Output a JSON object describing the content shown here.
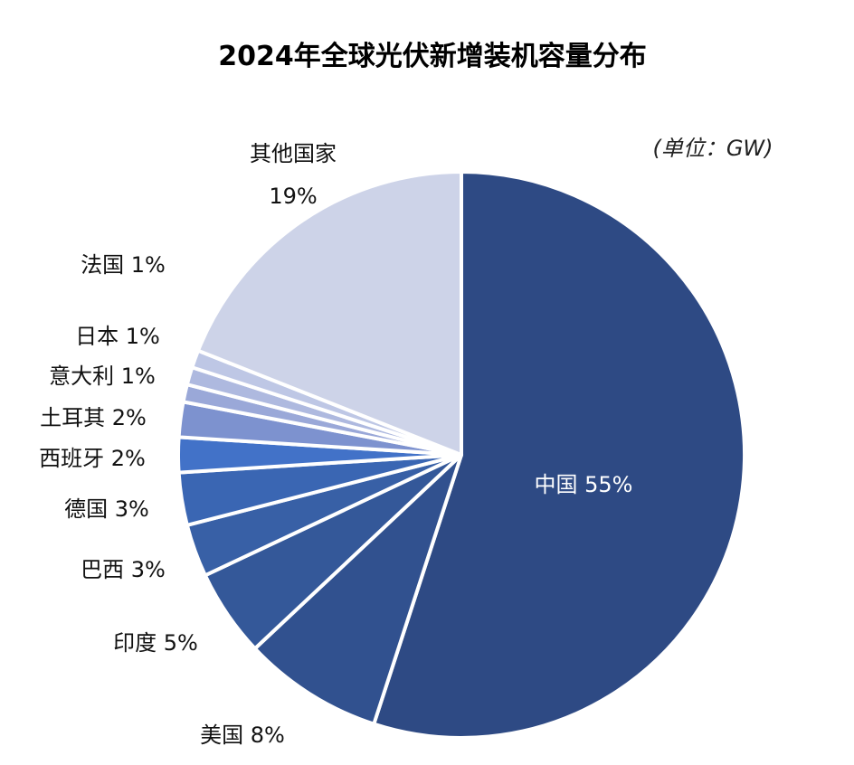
{
  "chart_data": {
    "type": "pie",
    "title": "2024年全球光伏新增装机容量分布",
    "unit_note": "(单位：GW)",
    "start_angle_deg": 0,
    "direction": "clockwise",
    "slices": [
      {
        "label": "中国 55%",
        "name": "中国",
        "value": 55,
        "color": "#2e4a84"
      },
      {
        "label": "美国 8%",
        "name": "美国",
        "value": 8,
        "color": "#31518f"
      },
      {
        "label": "印度 5%",
        "name": "印度",
        "value": 5,
        "color": "#345899"
      },
      {
        "label": "巴西 3%",
        "name": "巴西",
        "value": 3,
        "color": "#3860a6"
      },
      {
        "label": "德国 3%",
        "name": "德国",
        "value": 3,
        "color": "#3a66b3"
      },
      {
        "label": "西班牙 2%",
        "name": "西班牙",
        "value": 2,
        "color": "#4272c8"
      },
      {
        "label": "土耳其 2%",
        "name": "土耳其",
        "value": 2,
        "color": "#7d92cf"
      },
      {
        "label": "意大利 1%",
        "name": "意大利",
        "value": 1,
        "color": "#9aa8d8"
      },
      {
        "label": "日本 1%",
        "name": "日本",
        "value": 1,
        "color": "#aeb9df"
      },
      {
        "label": "法国 1%",
        "name": "法国",
        "value": 1,
        "color": "#bec7e5"
      },
      {
        "label": "其他国家",
        "label2": "19%",
        "name": "其他国家",
        "value": 19,
        "color": "#cdd3e8"
      }
    ]
  }
}
